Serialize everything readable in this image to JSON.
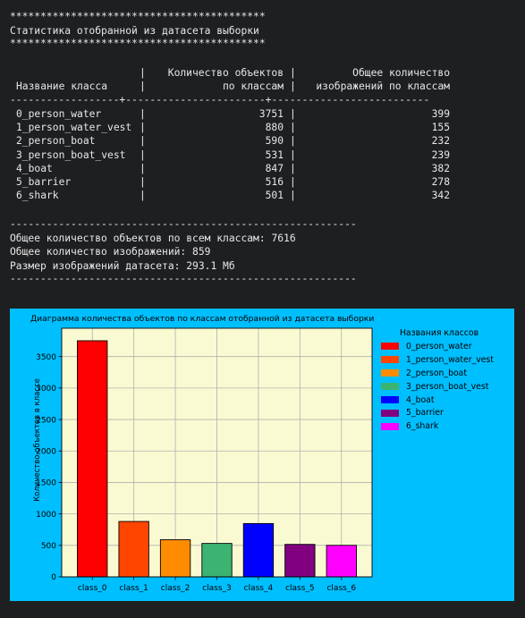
{
  "report": {
    "stars": "******************************************",
    "heading": "Статистика отобранной из датасета выборки",
    "table": {
      "col1_header_line2": "Название класса",
      "col2_header_line1": "Количество объектов",
      "col2_header_line2": "по классам",
      "col3_header_line1": "Общее количество",
      "col3_header_line2": "изображений по классам",
      "rule": "------------------+-----------------------+--------------------------",
      "rows": [
        {
          "name": "0_person_water",
          "objects": "3751",
          "images": "399"
        },
        {
          "name": "1_person_water_vest",
          "objects": "880",
          "images": "155"
        },
        {
          "name": "2_person_boat",
          "objects": "590",
          "images": "232"
        },
        {
          "name": "3_person_boat_vest",
          "objects": "531",
          "images": "239"
        },
        {
          "name": "4_boat",
          "objects": "847",
          "images": "382"
        },
        {
          "name": "5_barrier",
          "objects": "516",
          "images": "278"
        },
        {
          "name": "6_shark",
          "objects": "501",
          "images": "342"
        }
      ]
    },
    "dashes": "---------------------------------------------------------",
    "summary": {
      "total_objects": "Общее количество объектов по всем классам: 7616",
      "total_images": "Общее количество изображений: 859",
      "dataset_size": "Размер изображений датасета: 293.1 Мб"
    }
  },
  "chart_data": {
    "type": "bar",
    "title": "Диаграмма количества объектов по классам отобранной из датасета выборки",
    "xlabel": "",
    "ylabel": "Количество объектов в классе",
    "categories": [
      "class_0",
      "class_1",
      "class_2",
      "class_3",
      "class_4",
      "class_5",
      "class_6"
    ],
    "values": [
      3751,
      880,
      590,
      531,
      847,
      516,
      501
    ],
    "colors": [
      "#ff0000",
      "#ff4500",
      "#ff8c00",
      "#3cb371",
      "#0000ff",
      "#800080",
      "#ff00ff"
    ],
    "ylim": [
      0,
      3950
    ],
    "yticks": [
      0,
      500,
      1000,
      1500,
      2000,
      2500,
      3000,
      3500
    ],
    "grid": true,
    "plot_background": "#fafad2",
    "figure_background": "#00bfff",
    "legend": {
      "title": "Названия классов",
      "placement": "right",
      "entries": [
        "0_person_water",
        "1_person_water_vest",
        "2_person_boat",
        "3_person_boat_vest",
        "4_boat",
        "5_barrier",
        "6_shark"
      ]
    }
  }
}
